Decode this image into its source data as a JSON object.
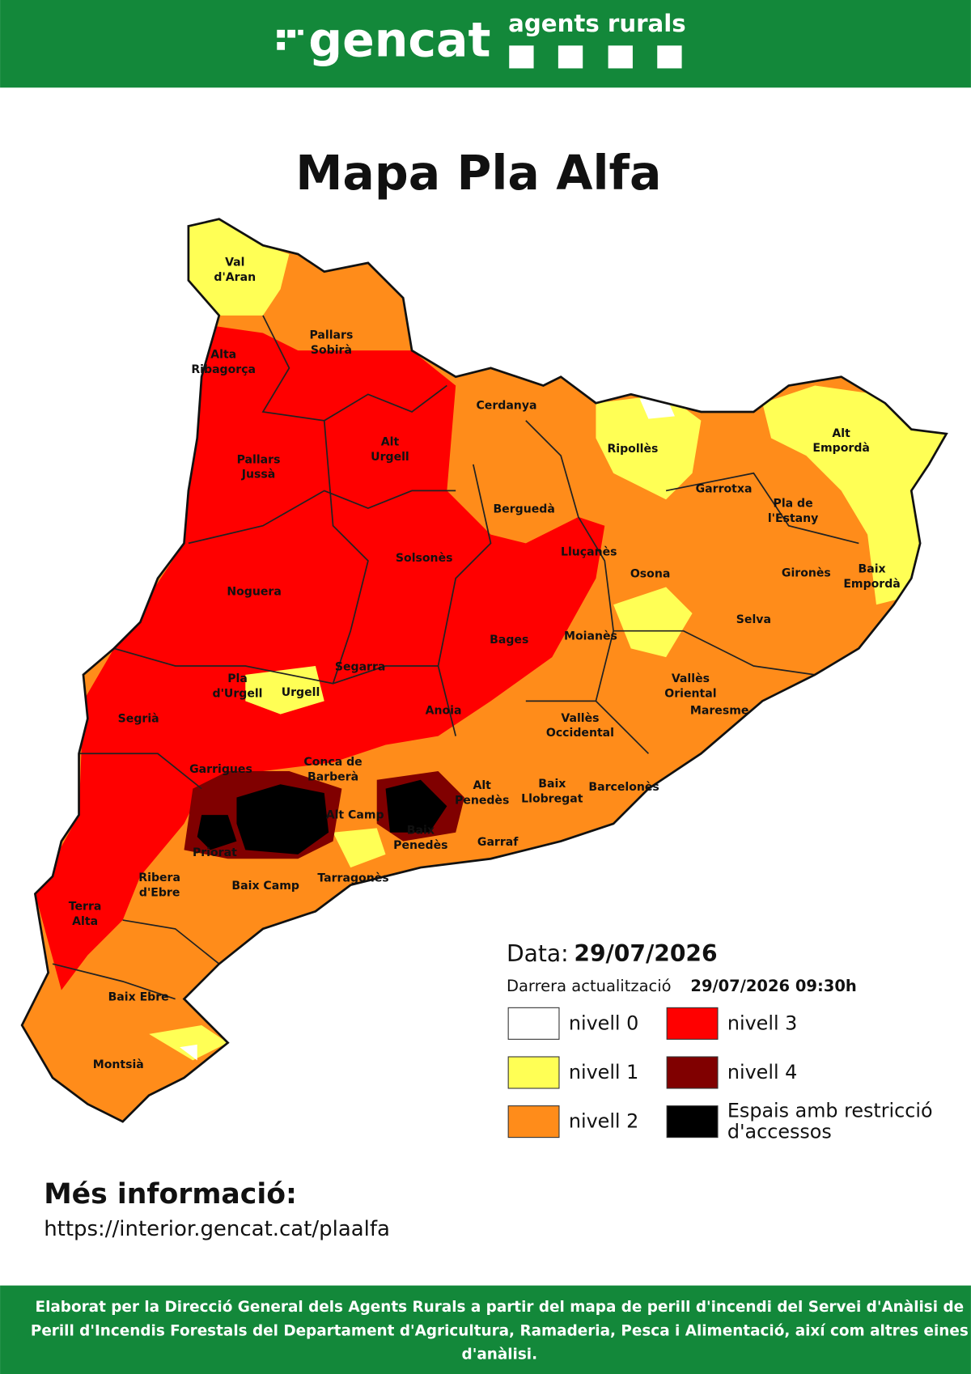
{
  "header": {
    "brand": "gencat",
    "subbrand": "agents rurals"
  },
  "title": "Mapa Pla Alfa",
  "map": {
    "regions": [
      [
        "Val",
        "d'Aran"
      ],
      [
        "Pallars",
        "Sobirà"
      ],
      [
        "Alta",
        "Ribagorça"
      ],
      [
        "Cerdanya"
      ],
      [
        "Alt",
        "Urgell"
      ],
      [
        "Pallars",
        "Jussà"
      ],
      [
        "Ripollès"
      ],
      [
        "Alt",
        "Empordà"
      ],
      [
        "Garrotxa"
      ],
      [
        "Berguedà"
      ],
      [
        "Pla de",
        "l'Estany"
      ],
      [
        "Solsonès"
      ],
      [
        "Lluçanès"
      ],
      [
        "Osona"
      ],
      [
        "Gironès"
      ],
      [
        "Baix",
        "Empordà"
      ],
      [
        "Noguera"
      ],
      [
        "Selva"
      ],
      [
        "Moianès"
      ],
      [
        "Bages"
      ],
      [
        "Segarra"
      ],
      [
        "Pla",
        "d'Urgell"
      ],
      [
        "Urgell"
      ],
      [
        "Vallès",
        "Oriental"
      ],
      [
        "Segrià"
      ],
      [
        "Anoia"
      ],
      [
        "Maresme"
      ],
      [
        "Vallès",
        "Occidental"
      ],
      [
        "Garrigues"
      ],
      [
        "Conca de",
        "Barberà"
      ],
      [
        "Alt",
        "Penedès"
      ],
      [
        "Baix",
        "Llobregat"
      ],
      [
        "Barcelonès"
      ],
      [
        "Alt Camp"
      ],
      [
        "Baix",
        "Penedès"
      ],
      [
        "Garraf"
      ],
      [
        "Priorat"
      ],
      [
        "Ribera",
        "d'Ebre"
      ],
      [
        "Tarragonès"
      ],
      [
        "Baix Camp"
      ],
      [
        "Terra",
        "Alta"
      ],
      [
        "Baix Ebre"
      ],
      [
        "Montsià"
      ]
    ]
  },
  "legend": {
    "date_label": "Data:",
    "date": "29/07/2026",
    "update_label": "Darrera actualització",
    "update": "29/07/2026 09:30h",
    "items": [
      {
        "label": [
          "nivell 0"
        ],
        "color": "#ffffff"
      },
      {
        "label": [
          "nivell 1"
        ],
        "color": "#ffff55"
      },
      {
        "label": [
          "nivell 2"
        ],
        "color": "#ff8c1a"
      },
      {
        "label": [
          "nivell 3"
        ],
        "color": "#ff0000"
      },
      {
        "label": [
          "nivell 4"
        ],
        "color": "#800000"
      },
      {
        "label": [
          "Espais amb restricció",
          "d'accessos"
        ],
        "color": "#000000"
      }
    ]
  },
  "more_info": {
    "title": "Més informació:",
    "url": "https://interior.gencat.cat/plaalfa"
  },
  "footer": {
    "lines": [
      "Elaborat per la Direcció General dels Agents Rurals a partir del mapa de perill d'incendi del Servei d'Anàlisi de",
      "Perill d'Incendis Forestals del Departament d'Agricultura, Ramaderia, Pesca i Alimentació, així com altres eines",
      "d'anàlisi."
    ]
  }
}
